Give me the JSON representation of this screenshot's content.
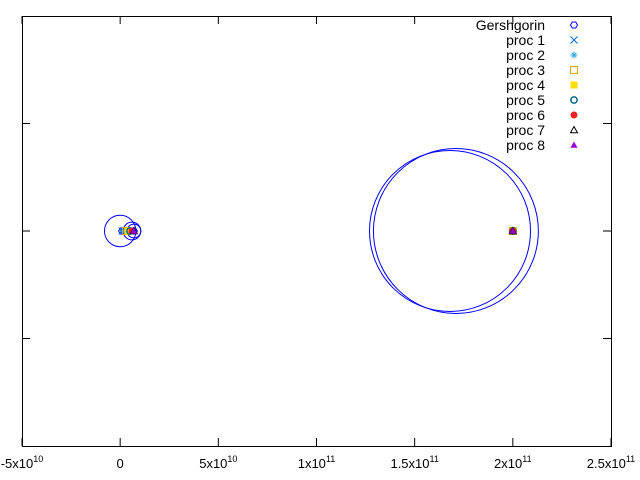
{
  "chart_data": {
    "type": "scatter",
    "title": "",
    "xlabel": "",
    "ylabel": "",
    "xlim": [
      -50000000000,
      250000000000
    ],
    "ylim": [
      -100,
      100
    ],
    "grid": false,
    "legend_position": "top-right",
    "x_ticks": [
      {
        "value": -50000000000,
        "mant": "-5x10",
        "exp": "10"
      },
      {
        "value": 0,
        "mant": "0",
        "exp": ""
      },
      {
        "value": 50000000000,
        "mant": "5x10",
        "exp": "10"
      },
      {
        "value": 100000000000,
        "mant": "1x10",
        "exp": "11"
      },
      {
        "value": 150000000000,
        "mant": "1.5x10",
        "exp": "11"
      },
      {
        "value": 200000000000,
        "mant": "2x10",
        "exp": "11"
      },
      {
        "value": 250000000000,
        "mant": "2.5x10",
        "exp": "11"
      }
    ],
    "y_tick_values": [
      -50,
      0,
      50
    ],
    "gershgorin_discs": [
      {
        "cx": 0,
        "r": 8000000000
      },
      {
        "cx": 6000000000,
        "r": 4500000000
      },
      {
        "cx": 7000000000,
        "r": 3500000000
      },
      {
        "cx": 168000000000,
        "r": 41000000000
      },
      {
        "cx": 171000000000,
        "r": 42000000000
      }
    ],
    "series": [
      {
        "name": "Gershgorin",
        "marker": "open-hexagon",
        "color": "#0000ff",
        "points": [
          [
            1000000000,
            0
          ],
          [
            2000000000,
            0
          ],
          [
            3000000000,
            0
          ],
          [
            4000000000,
            0
          ],
          [
            5000000000,
            0
          ],
          [
            6000000000,
            0
          ],
          [
            7000000000,
            0
          ]
        ]
      },
      {
        "name": "proc 1",
        "marker": "x",
        "color": "#0066cc",
        "points": [
          [
            1000000000,
            0
          ],
          [
            200000000000,
            0
          ]
        ]
      },
      {
        "name": "proc 2",
        "marker": "asterisk",
        "color": "#33aadd",
        "points": [
          [
            2000000000,
            0
          ],
          [
            200000000000,
            0
          ]
        ]
      },
      {
        "name": "proc 3",
        "marker": "open-square",
        "color": "#ddaa00",
        "points": [
          [
            3000000000,
            0
          ],
          [
            200000000000,
            0
          ]
        ]
      },
      {
        "name": "proc 4",
        "marker": "filled-square",
        "color": "#ffdd00",
        "points": [
          [
            4000000000,
            0
          ],
          [
            200000000000,
            0
          ]
        ]
      },
      {
        "name": "proc 5",
        "marker": "open-circle",
        "color": "#006688",
        "points": [
          [
            5000000000,
            0
          ],
          [
            200000000000,
            0
          ]
        ]
      },
      {
        "name": "proc 6",
        "marker": "filled-circle",
        "color": "#ee2222",
        "points": [
          [
            6000000000,
            0
          ],
          [
            200000000000,
            0
          ]
        ]
      },
      {
        "name": "proc 7",
        "marker": "open-triangle",
        "color": "#000000",
        "points": [
          [
            7000000000,
            0
          ],
          [
            200000000000,
            0
          ]
        ]
      },
      {
        "name": "proc 8",
        "marker": "filled-triangle",
        "color": "#9400d3",
        "points": [
          [
            7000000000,
            0
          ],
          [
            200000000000,
            0
          ]
        ]
      }
    ]
  }
}
